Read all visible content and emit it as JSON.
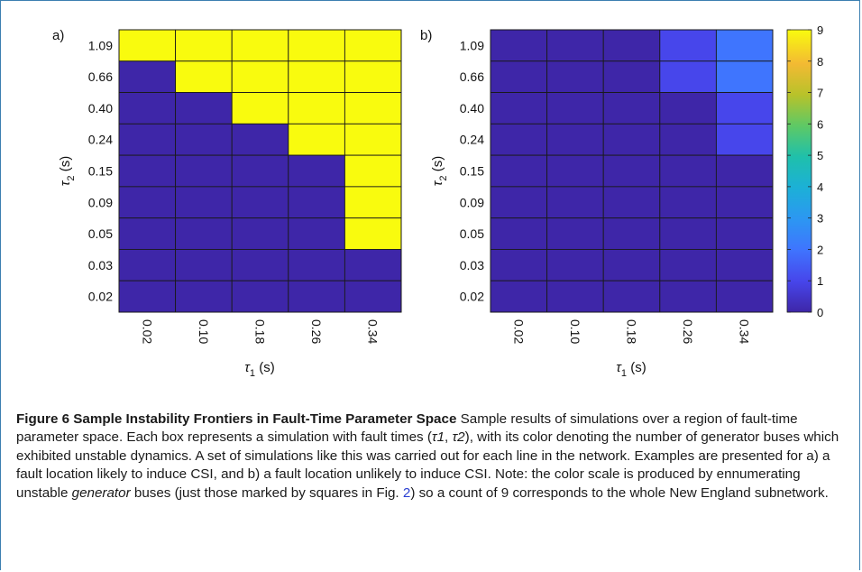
{
  "colors": {
    "unstable_full": "#f9fb0e",
    "stable_zero": "#3e26a8",
    "frame": "#3c7fb1",
    "ref_link": "#2a3fd1"
  },
  "chart_data": [
    {
      "type": "heatmap",
      "panel_label": "a)",
      "x_categories": [
        "0.02",
        "0.10",
        "0.18",
        "0.26",
        "0.34"
      ],
      "y_categories": [
        "1.09",
        "0.66",
        "0.40",
        "0.24",
        "0.15",
        "0.09",
        "0.05",
        "0.03",
        "0.02"
      ],
      "xlabel": "τ1 (s)",
      "ylabel": "τ2 (s)",
      "values": [
        [
          9,
          9,
          9,
          9,
          9
        ],
        [
          0,
          9,
          9,
          9,
          9
        ],
        [
          0,
          0,
          9,
          9,
          9
        ],
        [
          0,
          0,
          0,
          9,
          9
        ],
        [
          0,
          0,
          0,
          0,
          9
        ],
        [
          0,
          0,
          0,
          0,
          9
        ],
        [
          0,
          0,
          0,
          0,
          9
        ],
        [
          0,
          0,
          0,
          0,
          0
        ],
        [
          0,
          0,
          0,
          0,
          0
        ]
      ],
      "color_range": [
        0,
        9
      ]
    },
    {
      "type": "heatmap",
      "panel_label": "b)",
      "x_categories": [
        "0.02",
        "0.10",
        "0.18",
        "0.26",
        "0.34"
      ],
      "y_categories": [
        "1.09",
        "0.66",
        "0.40",
        "0.24",
        "0.15",
        "0.09",
        "0.05",
        "0.03",
        "0.02"
      ],
      "xlabel": "τ1 (s)",
      "ylabel": "τ2 (s)",
      "values": [
        [
          0,
          0,
          0,
          1,
          2
        ],
        [
          0,
          0,
          0,
          1,
          2
        ],
        [
          0,
          0,
          0,
          0,
          1
        ],
        [
          0,
          0,
          0,
          0,
          1
        ],
        [
          0,
          0,
          0,
          0,
          0
        ],
        [
          0,
          0,
          0,
          0,
          0
        ],
        [
          0,
          0,
          0,
          0,
          0
        ],
        [
          0,
          0,
          0,
          0,
          0
        ],
        [
          0,
          0,
          0,
          0,
          0
        ]
      ],
      "color_range": [
        0,
        9
      ],
      "colorbar_ticks": [
        "0",
        "1",
        "2",
        "3",
        "4",
        "5",
        "6",
        "7",
        "8",
        "9"
      ]
    }
  ],
  "axis_text": {
    "tau": "τ",
    "x_sub": "1",
    "y_sub": "2",
    "unit": "(s)"
  },
  "caption": {
    "title": "Figure 6 Sample Instability Frontiers in Fault-Time Parameter Space",
    "part1": " Sample results of simulations over a region of fault-time parameter space. Each box represents a simulation with fault times (",
    "tau1": "τ1",
    "comma": ", ",
    "tau2": "τ2",
    "part2": "), with its color denoting the number of generator buses which exhibited unstable dynamics. A set of simulations like this was carried out for each line in the network. Examples are presented for a) a fault location likely to induce CSI, and b) a fault location unlikely to induce CSI. Note: the color scale is produced by ennumerating unstable ",
    "emph": "generator",
    "part3": " buses (just those marked by squares in Fig. ",
    "fig_ref": "2",
    "part4": ") so a count of 9 corresponds to the whole New England subnetwork."
  }
}
